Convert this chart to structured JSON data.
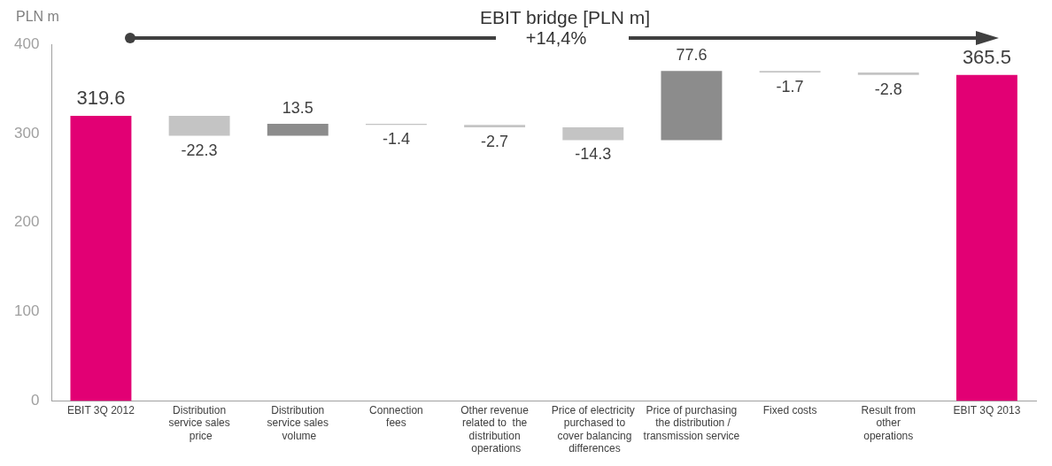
{
  "chart_data": {
    "type": "bar",
    "title": "EBIT bridge [PLN m]",
    "ylabel": "PLN m",
    "categories": [
      "EBIT 3Q 2012",
      "Distribution\nservice sales\n price",
      "Distribution\nservice sales\n volume",
      "Connection\nfees",
      "Other revenue\nrelated to  the\ndistribution\n operations",
      "Price of electricity\n purchased to\n cover balancing\n differences",
      "Price of purchasing\n the distribution /\ntransmission service",
      "Fixed costs",
      "Result from\nother\noperations",
      "EBIT 3Q 2013"
    ],
    "values": [
      319.6,
      -22.3,
      13.5,
      -1.4,
      -2.7,
      -14.3,
      77.6,
      -1.7,
      -2.8,
      365.5
    ],
    "base": [
      0,
      319.6,
      297.3,
      310.8,
      309.4,
      306.7,
      292.4,
      370.0,
      368.3,
      0
    ],
    "colors": [
      "#e20074",
      "#c4c4c4",
      "#8c8c8c",
      "#c4c4c4",
      "#c4c4c4",
      "#c4c4c4",
      "#8c8c8c",
      "#c4c4c4",
      "#c4c4c4",
      "#e20074"
    ],
    "ylim": [
      0,
      400
    ],
    "yticks": [
      0,
      100,
      200,
      300,
      400
    ],
    "grid": false,
    "legend": false,
    "data_labels": true,
    "annotations": [
      "+14,4%"
    ]
  }
}
